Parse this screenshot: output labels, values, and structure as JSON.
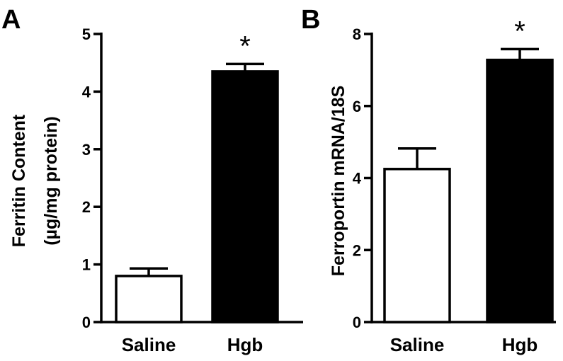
{
  "chart_data": [
    {
      "panel": "A",
      "type": "bar",
      "ylabel_lines": [
        "Ferritin Content",
        "(µg/mg protein)"
      ],
      "categories": [
        "Saline",
        "Hgb"
      ],
      "values": [
        0.8,
        4.35
      ],
      "errors": [
        0.13,
        0.13
      ],
      "bar_colors": [
        "#ffffff",
        "#000000"
      ],
      "significance": [
        "",
        "*"
      ],
      "ylim": [
        0,
        5
      ],
      "yticks": [
        0,
        1,
        2,
        3,
        4,
        5
      ],
      "grid": false
    },
    {
      "panel": "B",
      "type": "bar",
      "ylabel_lines": [
        "Ferroportin mRNA/18S"
      ],
      "categories": [
        "Saline",
        "Hgb"
      ],
      "values": [
        4.25,
        7.28
      ],
      "errors": [
        0.57,
        0.3
      ],
      "bar_colors": [
        "#ffffff",
        "#000000"
      ],
      "significance": [
        "",
        "*"
      ],
      "ylim": [
        0,
        8
      ],
      "yticks": [
        0,
        2,
        4,
        6,
        8
      ],
      "grid": false
    }
  ]
}
